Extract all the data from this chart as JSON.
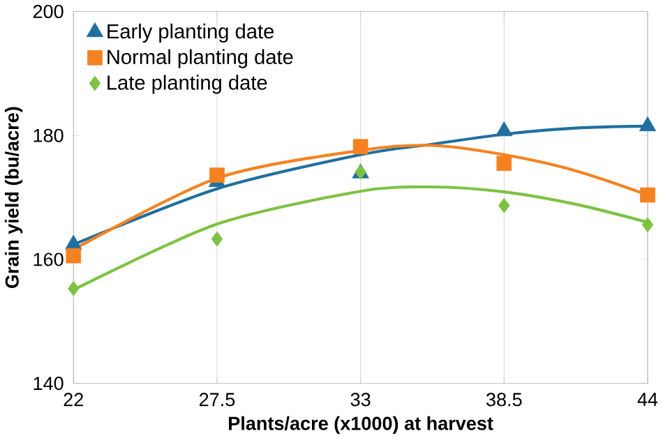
{
  "chart_data": {
    "type": "scatter",
    "xlabel": "Plants/acre (x1000) at harvest",
    "ylabel": "Grain yield (bu/acre)",
    "xlim": [
      22,
      44
    ],
    "xticks": [
      22,
      27.5,
      33,
      38.5,
      44
    ],
    "ylim": [
      140,
      200
    ],
    "yticks": [
      140,
      160,
      180,
      200
    ],
    "grid": "x",
    "legend": "top left",
    "series": [
      {
        "type": "line",
        "color": "#1f6f9f",
        "marker": "none",
        "x": [
          22,
          27.5,
          33,
          35.75,
          38.5,
          41.25,
          44
        ],
        "values": [
          162.4,
          171.4,
          176.9,
          178.6,
          180.2,
          181.2,
          181.5
        ]
      },
      {
        "type": "line",
        "color": "#f58220",
        "marker": "none",
        "x": [
          22,
          27.5,
          33,
          35.75,
          38.5,
          41.25,
          44
        ],
        "values": [
          161.6,
          173.1,
          177.6,
          178.4,
          176.9,
          174.3,
          170.4
        ]
      },
      {
        "type": "line",
        "color": "#7dc242",
        "marker": "none",
        "x": [
          22,
          27.5,
          33,
          35.75,
          38.5,
          41.25,
          44
        ],
        "values": [
          155.1,
          165.7,
          171.0,
          171.7,
          170.9,
          168.9,
          166.0
        ]
      },
      {
        "name": "Early planting date",
        "color": "#1f6f9f",
        "marker": "triangle",
        "x": [
          22,
          27.5,
          33,
          38.5,
          44
        ],
        "values": [
          162.4,
          172.5,
          173.9,
          180.7,
          181.5
        ]
      },
      {
        "name": "Normal planting date",
        "color": "#f58220",
        "marker": "square",
        "x": [
          22,
          27.5,
          33,
          38.5,
          44
        ],
        "values": [
          160.6,
          173.6,
          178.2,
          175.5,
          170.4
        ]
      },
      {
        "name": "Late planting date",
        "color": "#7dc242",
        "marker": "diamond",
        "x": [
          22,
          27.5,
          33,
          38.5,
          44
        ],
        "values": [
          155.3,
          163.3,
          174.1,
          168.7,
          165.6
        ]
      }
    ]
  }
}
